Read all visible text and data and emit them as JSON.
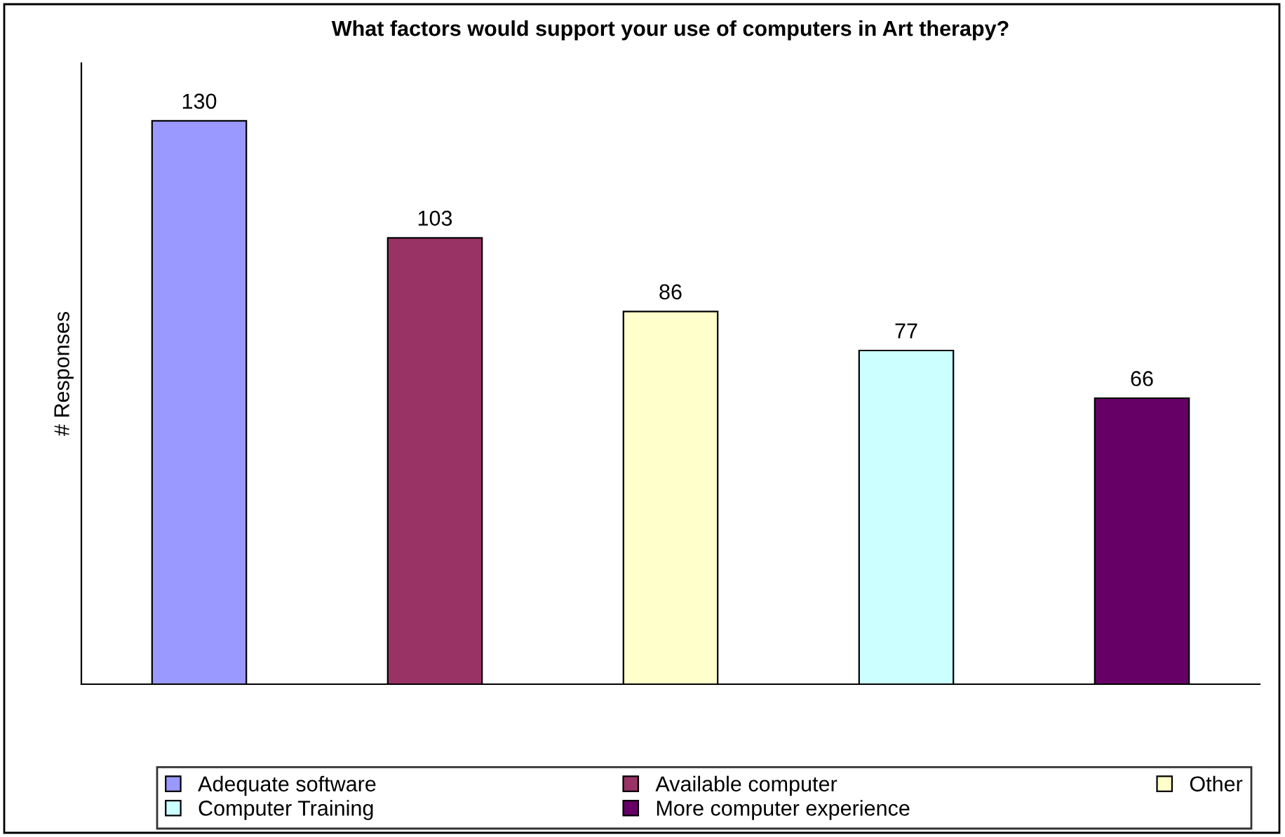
{
  "chart_data": {
    "type": "bar",
    "title": "What factors would support your use of computers in Art therapy?",
    "ylabel": "# Responses",
    "categories": [
      null,
      null,
      null,
      null,
      null
    ],
    "stacked": true,
    "series": [
      {
        "name": "Adequate software",
        "color": "#9999ff",
        "values": [
          130,
          null,
          null,
          null,
          null
        ]
      },
      {
        "name": "Available computer",
        "color": "#993366",
        "values": [
          null,
          103,
          null,
          null,
          null
        ]
      },
      {
        "name": "Other",
        "color": "#ffffcc",
        "values": [
          null,
          null,
          86,
          null,
          null
        ]
      },
      {
        "name": "Computer Training",
        "color": "#ccffff",
        "values": [
          null,
          null,
          null,
          77,
          null
        ]
      },
      {
        "name": "More computer experience",
        "color": "#660066",
        "values": [
          null,
          null,
          null,
          null,
          66
        ]
      }
    ],
    "data_labels": true,
    "legend": "bottom",
    "grid": false,
    "tick_labels": false
  }
}
